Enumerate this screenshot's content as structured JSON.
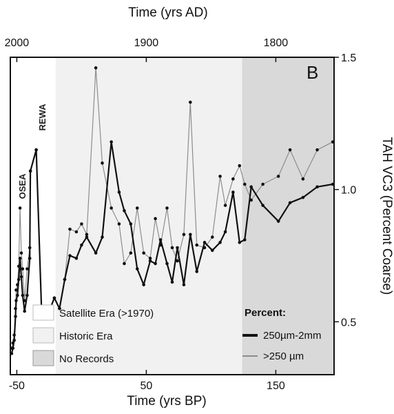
{
  "chart_data": {
    "type": "line",
    "panel_label": "B",
    "xlabel": "Time (yrs BP)",
    "x2label": "Time (yrs AD)",
    "ylabel": "TAH VC3 (Percent Coarse)",
    "xlim": [
      -55,
      195
    ],
    "ylim": [
      0.3,
      1.5
    ],
    "xticks": [
      -50,
      50,
      150
    ],
    "xtick_labels": [
      "-50",
      "50",
      "150"
    ],
    "x2ticks": [
      -50,
      50,
      150
    ],
    "x2tick_labels": [
      "2000",
      "1900",
      "1800"
    ],
    "yticks": [
      0.5,
      1.0,
      1.5
    ],
    "ytick_labels": [
      "0.5",
      "1.0",
      "1.5"
    ],
    "annotations": [
      "OSEA",
      "REWA"
    ],
    "eras": [
      {
        "name": "Satellite Era (>1970)",
        "x_range": [
          -55,
          -20
        ],
        "color": "#ffffff"
      },
      {
        "name": "Historic Era",
        "x_range": [
          -20,
          124
        ],
        "color": "#f1f1f1"
      },
      {
        "name": "No Records",
        "x_range": [
          124,
          195
        ],
        "color": "#d9d9d9"
      }
    ],
    "legend_title": "Percent:",
    "series": [
      {
        "name": "250µm-2mm",
        "color": "#111111",
        "x": [
          -54,
          -53,
          -52,
          -51,
          -50.5,
          -49.5,
          -48.5,
          -47.5,
          -46.5,
          -45.5,
          -44,
          -42,
          -40,
          -39.5,
          -35,
          -31,
          -25,
          -21,
          -17,
          -13,
          -9,
          -4,
          0,
          4,
          11,
          16,
          23,
          29,
          33,
          38,
          43,
          48,
          53,
          57,
          61,
          66,
          70,
          74,
          79,
          84,
          89,
          95,
          101,
          107,
          111,
          117,
          122,
          126,
          131,
          140,
          152,
          161,
          171,
          182,
          194
        ],
        "y": [
          0.38,
          0.4,
          0.43,
          0.52,
          0.58,
          0.6,
          0.66,
          0.74,
          0.67,
          0.6,
          0.54,
          0.6,
          0.74,
          1.07,
          1.15,
          0.56,
          0.54,
          0.59,
          0.55,
          0.66,
          0.75,
          0.74,
          0.79,
          0.82,
          0.76,
          0.82,
          1.18,
          0.99,
          0.92,
          0.87,
          0.7,
          0.64,
          0.73,
          0.72,
          0.81,
          0.72,
          0.65,
          0.78,
          0.64,
          0.83,
          0.69,
          0.8,
          0.77,
          0.8,
          0.84,
          0.99,
          0.8,
          0.81,
          1.01,
          0.94,
          0.88,
          0.95,
          0.97,
          1.01,
          1.02
        ]
      },
      {
        "name": ">250 µm",
        "color": "#8c8c8c",
        "x": [
          -54,
          -53,
          -52,
          -51,
          -50.5,
          -49.5,
          -48.5,
          -47.5,
          -46.5,
          -45.5,
          -44,
          -42,
          -40,
          -39.5,
          -35,
          -31,
          -25,
          -21,
          -17,
          -13,
          -9,
          -4,
          0,
          4,
          11,
          16,
          23,
          29,
          33,
          38,
          43,
          48,
          53,
          57,
          61,
          66,
          70,
          74,
          79,
          84,
          89,
          95,
          101,
          107,
          111,
          117,
          122,
          126,
          131,
          140,
          152,
          161,
          171,
          182,
          194
        ],
        "y": [
          0.4,
          0.42,
          0.45,
          0.55,
          0.62,
          0.64,
          0.71,
          0.93,
          0.76,
          0.7,
          0.58,
          0.7,
          0.78,
          1.07,
          1.15,
          0.56,
          0.54,
          0.59,
          0.55,
          0.66,
          0.85,
          0.84,
          0.87,
          0.83,
          1.46,
          1.1,
          0.93,
          0.87,
          0.72,
          0.76,
          0.93,
          0.76,
          0.74,
          0.89,
          0.79,
          0.93,
          0.78,
          0.73,
          0.83,
          1.33,
          0.79,
          0.78,
          0.82,
          1.05,
          0.94,
          1.04,
          1.09,
          1.02,
          0.96,
          1.02,
          1.05,
          1.15,
          1.04,
          1.15,
          1.18
        ]
      }
    ]
  }
}
